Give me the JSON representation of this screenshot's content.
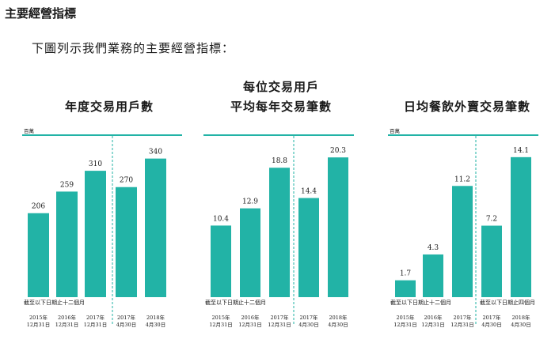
{
  "heading": "主要經營指標",
  "intro": "下圖列示我們業務的主要經營指標：",
  "colors": {
    "bar": "#22b3a6",
    "accent": "#22b3a6",
    "divider": "#22b3a6"
  },
  "chart_data": [
    {
      "type": "bar",
      "title_lines": [
        "年度交易用戶數"
      ],
      "unit": "百萬",
      "period_label": "截至以下日期止十二個月",
      "categories": [
        "2015年\n12月31日",
        "2016年\n12月31日",
        "2017年\n12月31日",
        "2017年\n4月30日",
        "2018年\n4月30日"
      ],
      "values": [
        206,
        259,
        310,
        270,
        340
      ],
      "value_labels": [
        "206",
        "259",
        "310",
        "270",
        "340"
      ],
      "ylim": [
        0,
        380
      ],
      "divider_after_index": 2
    },
    {
      "type": "bar",
      "title_lines": [
        "每位交易用戶",
        "平均每年交易筆數"
      ],
      "unit": "",
      "period_label": "截至以下日期止十二個月",
      "categories": [
        "2015年\n12月31日",
        "2016年\n12月31日",
        "2017年\n12月31日",
        "2017年\n4月30日",
        "2018年\n4月30日"
      ],
      "values": [
        10.4,
        12.9,
        18.8,
        14.4,
        20.3
      ],
      "value_labels": [
        "10.4",
        "12.9",
        "18.8",
        "14.4",
        "20.3"
      ],
      "ylim": [
        0,
        22.5
      ],
      "divider_after_index": 2
    },
    {
      "type": "bar",
      "title_lines": [
        "日均餐飲外賣交易筆數"
      ],
      "unit": "百萬",
      "period_label_left": "截至以下日期止十二個月",
      "period_label_right": "截至以下日期止四個月",
      "categories": [
        "2015年\n12月31日",
        "2016年\n12月31日",
        "2017年\n12月31日",
        "2017年\n4月30日",
        "2018年\n4月30日"
      ],
      "values": [
        1.7,
        4.3,
        11.2,
        7.2,
        14.1
      ],
      "value_labels": [
        "1.7",
        "4.3",
        "11.2",
        "7.2",
        "14.1"
      ],
      "ylim": [
        0,
        15.6
      ],
      "divider_after_index": 2
    }
  ]
}
